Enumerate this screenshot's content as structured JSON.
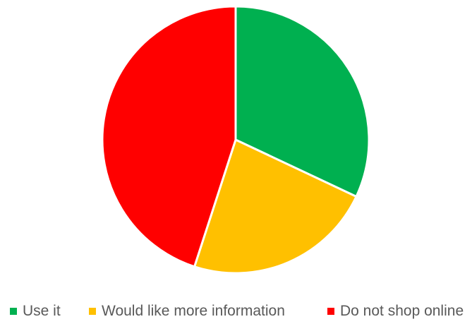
{
  "chart_data": {
    "type": "pie",
    "title": "",
    "categories": [
      "Use it",
      "Would like more information",
      "Do not shop online"
    ],
    "values": [
      32,
      23,
      45
    ],
    "colors": [
      "#00b050",
      "#ffc000",
      "#ff0000"
    ],
    "start_angle_deg": 0,
    "direction": "clockwise",
    "legend": "bottom"
  },
  "legend": {
    "items": [
      {
        "label": "Use it",
        "color": "#00b050"
      },
      {
        "label": "Would like more information",
        "color": "#ffc000"
      },
      {
        "label": "Do not shop online",
        "color": "#ff0000"
      }
    ]
  }
}
